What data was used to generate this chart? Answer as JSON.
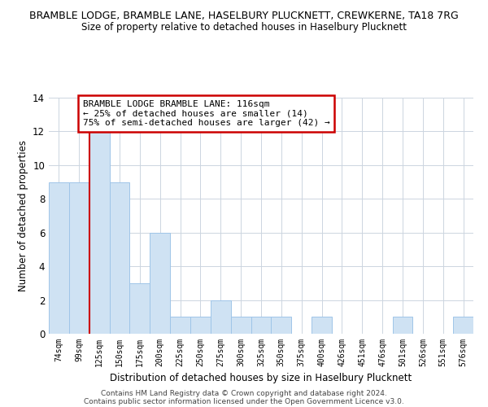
{
  "title_main": "BRAMBLE LODGE, BRAMBLE LANE, HASELBURY PLUCKNETT, CREWKERNE, TA18 7RG",
  "title_sub": "Size of property relative to detached houses in Haselbury Plucknett",
  "xlabel": "Distribution of detached houses by size in Haselbury Plucknett",
  "ylabel": "Number of detached properties",
  "bar_labels": [
    "74sqm",
    "99sqm",
    "125sqm",
    "150sqm",
    "175sqm",
    "200sqm",
    "225sqm",
    "250sqm",
    "275sqm",
    "300sqm",
    "325sqm",
    "350sqm",
    "375sqm",
    "400sqm",
    "426sqm",
    "451sqm",
    "476sqm",
    "501sqm",
    "526sqm",
    "551sqm",
    "576sqm"
  ],
  "bar_values": [
    9,
    9,
    12,
    9,
    3,
    6,
    1,
    1,
    2,
    1,
    1,
    1,
    0,
    1,
    0,
    0,
    0,
    1,
    0,
    0,
    1
  ],
  "bar_color": "#cfe2f3",
  "bar_edge_color": "#9fc5e8",
  "ylim": [
    0,
    14
  ],
  "yticks": [
    0,
    2,
    4,
    6,
    8,
    10,
    12,
    14
  ],
  "annotation_line0": "BRAMBLE LODGE BRAMBLE LANE: 116sqm",
  "annotation_line1": "← 25% of detached houses are smaller (14)",
  "annotation_line2": "75% of semi-detached houses are larger (42) →",
  "annotation_box_color": "#ffffff",
  "annotation_box_edge": "#cc0000",
  "vline_color": "#cc0000",
  "footer1": "Contains HM Land Registry data © Crown copyright and database right 2024.",
  "footer2": "Contains public sector information licensed under the Open Government Licence v3.0.",
  "bg_color": "#ffffff",
  "grid_color": "#ccd5e0"
}
